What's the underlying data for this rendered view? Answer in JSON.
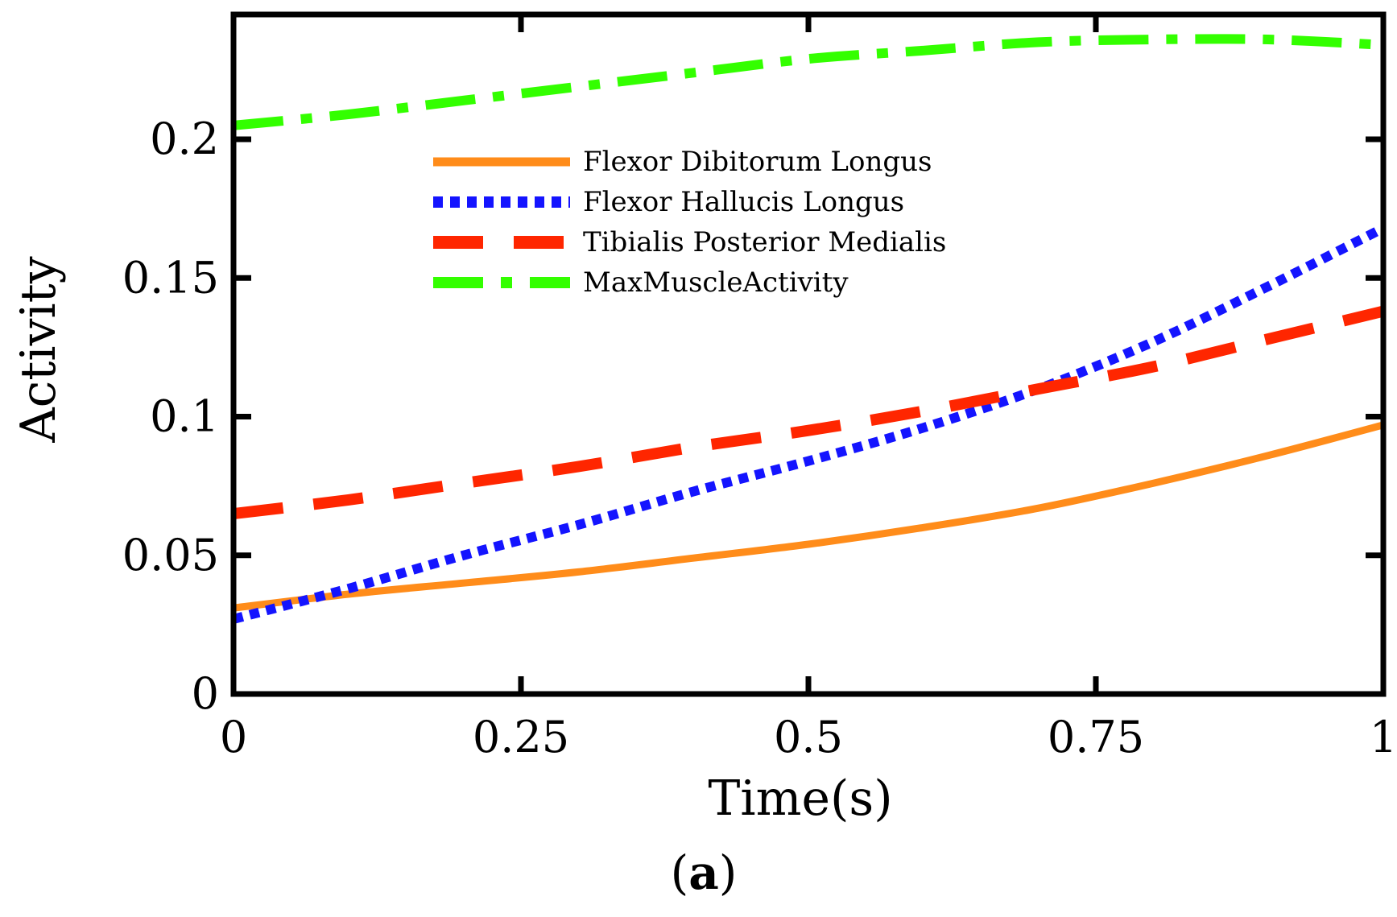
{
  "chart_data": {
    "type": "line",
    "title": "",
    "xlabel": "Time(s)",
    "ylabel": "Activity",
    "panel_label": {
      "open": "(",
      "letter": "a",
      "close": ")"
    },
    "xlim": [
      0,
      1
    ],
    "ylim": [
      0,
      0.245
    ],
    "xticks": [
      0,
      0.25,
      0.5,
      0.75,
      1
    ],
    "xtick_labels": [
      "0",
      "0.25",
      "0.5",
      "0.75",
      "1"
    ],
    "yticks": [
      0,
      0.05,
      0.1,
      0.15,
      0.2
    ],
    "ytick_labels": [
      "0",
      "0.05",
      "0.1",
      "0.15",
      "0.2"
    ],
    "grid": false,
    "legend_position": "top-center",
    "x": [
      0,
      0.1,
      0.2,
      0.3,
      0.4,
      0.5,
      0.6,
      0.7,
      0.8,
      0.9,
      1.0
    ],
    "series": [
      {
        "name": "Flexor Dibitorum Longus",
        "color": "#ff8c1a",
        "style": "solid",
        "values": [
          0.031,
          0.036,
          0.04,
          0.044,
          0.049,
          0.054,
          0.06,
          0.067,
          0.076,
          0.086,
          0.097
        ]
      },
      {
        "name": "Flexor Hallucis Longus",
        "color": "#1414ff",
        "style": "dotted",
        "values": [
          0.027,
          0.038,
          0.05,
          0.061,
          0.073,
          0.084,
          0.096,
          0.11,
          0.127,
          0.147,
          0.168
        ]
      },
      {
        "name": "Tibialis Posterior Medialis",
        "color": "#ff2600",
        "style": "dashed",
        "values": [
          0.065,
          0.07,
          0.076,
          0.082,
          0.089,
          0.095,
          0.102,
          0.11,
          0.118,
          0.128,
          0.138
        ]
      },
      {
        "name": "MaxMuscleActivity",
        "color": "#33ff00",
        "style": "dashdot",
        "values": [
          0.205,
          0.209,
          0.214,
          0.219,
          0.224,
          0.229,
          0.232,
          0.235,
          0.236,
          0.236,
          0.234
        ]
      }
    ]
  }
}
